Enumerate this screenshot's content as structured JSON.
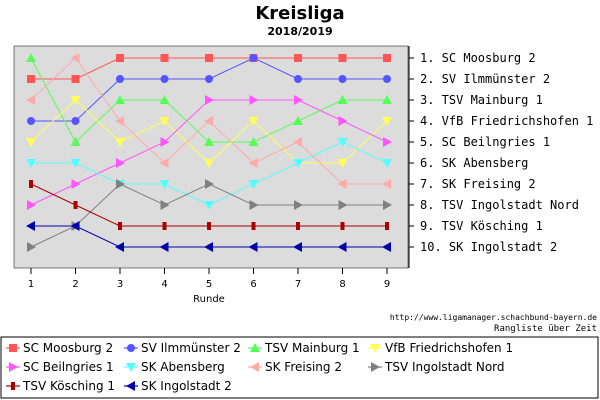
{
  "chart_data": {
    "type": "line",
    "title": "Kreisliga",
    "subtitle": "2018/2019",
    "xlabel": "Runde",
    "ylabel": "",
    "x": [
      1,
      2,
      3,
      4,
      5,
      6,
      7,
      8,
      9
    ],
    "ylim": [
      1,
      10
    ],
    "y_inverted": true,
    "grid": false,
    "legend_position": "bottom",
    "standings": [
      "1. SC Moosburg 2",
      "2. SV Ilmmünster 2",
      "3. TSV Mainburg 1",
      "4. VfB Friedrichshofen 1",
      "5. SC Beilngries 1",
      "6. SK Abensberg",
      "7. SK Freising 2",
      "8. TSV Ingolstadt Nord",
      "9. TSV Kösching 1",
      "10. SK Ingolstadt 2"
    ],
    "series": [
      {
        "name": "SC Moosburg 2",
        "color": "#ff5555",
        "marker": "square",
        "values": [
          2,
          2,
          1,
          1,
          1,
          1,
          1,
          1,
          1
        ]
      },
      {
        "name": "SV Ilmmünster 2",
        "color": "#5555ff",
        "marker": "circle",
        "values": [
          4,
          4,
          2,
          2,
          2,
          1,
          2,
          2,
          2
        ]
      },
      {
        "name": "TSV Mainburg 1",
        "color": "#55ff55",
        "marker": "triangle-up",
        "values": [
          1,
          5,
          3,
          3,
          5,
          5,
          4,
          3,
          3
        ]
      },
      {
        "name": "VfB Friedrichshofen 1",
        "color": "#ffff55",
        "marker": "triangle-down",
        "values": [
          5,
          3,
          5,
          4,
          6,
          4,
          6,
          6,
          4
        ]
      },
      {
        "name": "SC Beilngries 1",
        "color": "#ff55ff",
        "marker": "triangle-right",
        "values": [
          8,
          7,
          6,
          5,
          3,
          3,
          3,
          4,
          5
        ]
      },
      {
        "name": "SK Abensberg",
        "color": "#55ffff",
        "marker": "triangle-down",
        "values": [
          6,
          6,
          7,
          7,
          8,
          7,
          6,
          5,
          6
        ]
      },
      {
        "name": "SK Freising 2",
        "color": "#ffaaaa",
        "marker": "triangle-left",
        "values": [
          3,
          1,
          4,
          6,
          4,
          6,
          5,
          7,
          7
        ]
      },
      {
        "name": "TSV Ingolstadt Nord",
        "color": "#808080",
        "marker": "triangle-right",
        "values": [
          10,
          9,
          7,
          8,
          7,
          8,
          8,
          8,
          8
        ]
      },
      {
        "name": "TSV Kösching 1",
        "color": "#aa0000",
        "marker": "tee",
        "values": [
          7,
          8,
          9,
          9,
          9,
          9,
          9,
          9,
          9
        ]
      },
      {
        "name": "SK Ingolstadt 2",
        "color": "#0000aa",
        "marker": "triangle-left",
        "values": [
          9,
          9,
          10,
          10,
          10,
          10,
          10,
          10,
          10
        ]
      }
    ]
  },
  "footer": {
    "url": "http://www.ligamanager.schachbund-bayern.de",
    "caption": "Rangliste über Zeit"
  }
}
